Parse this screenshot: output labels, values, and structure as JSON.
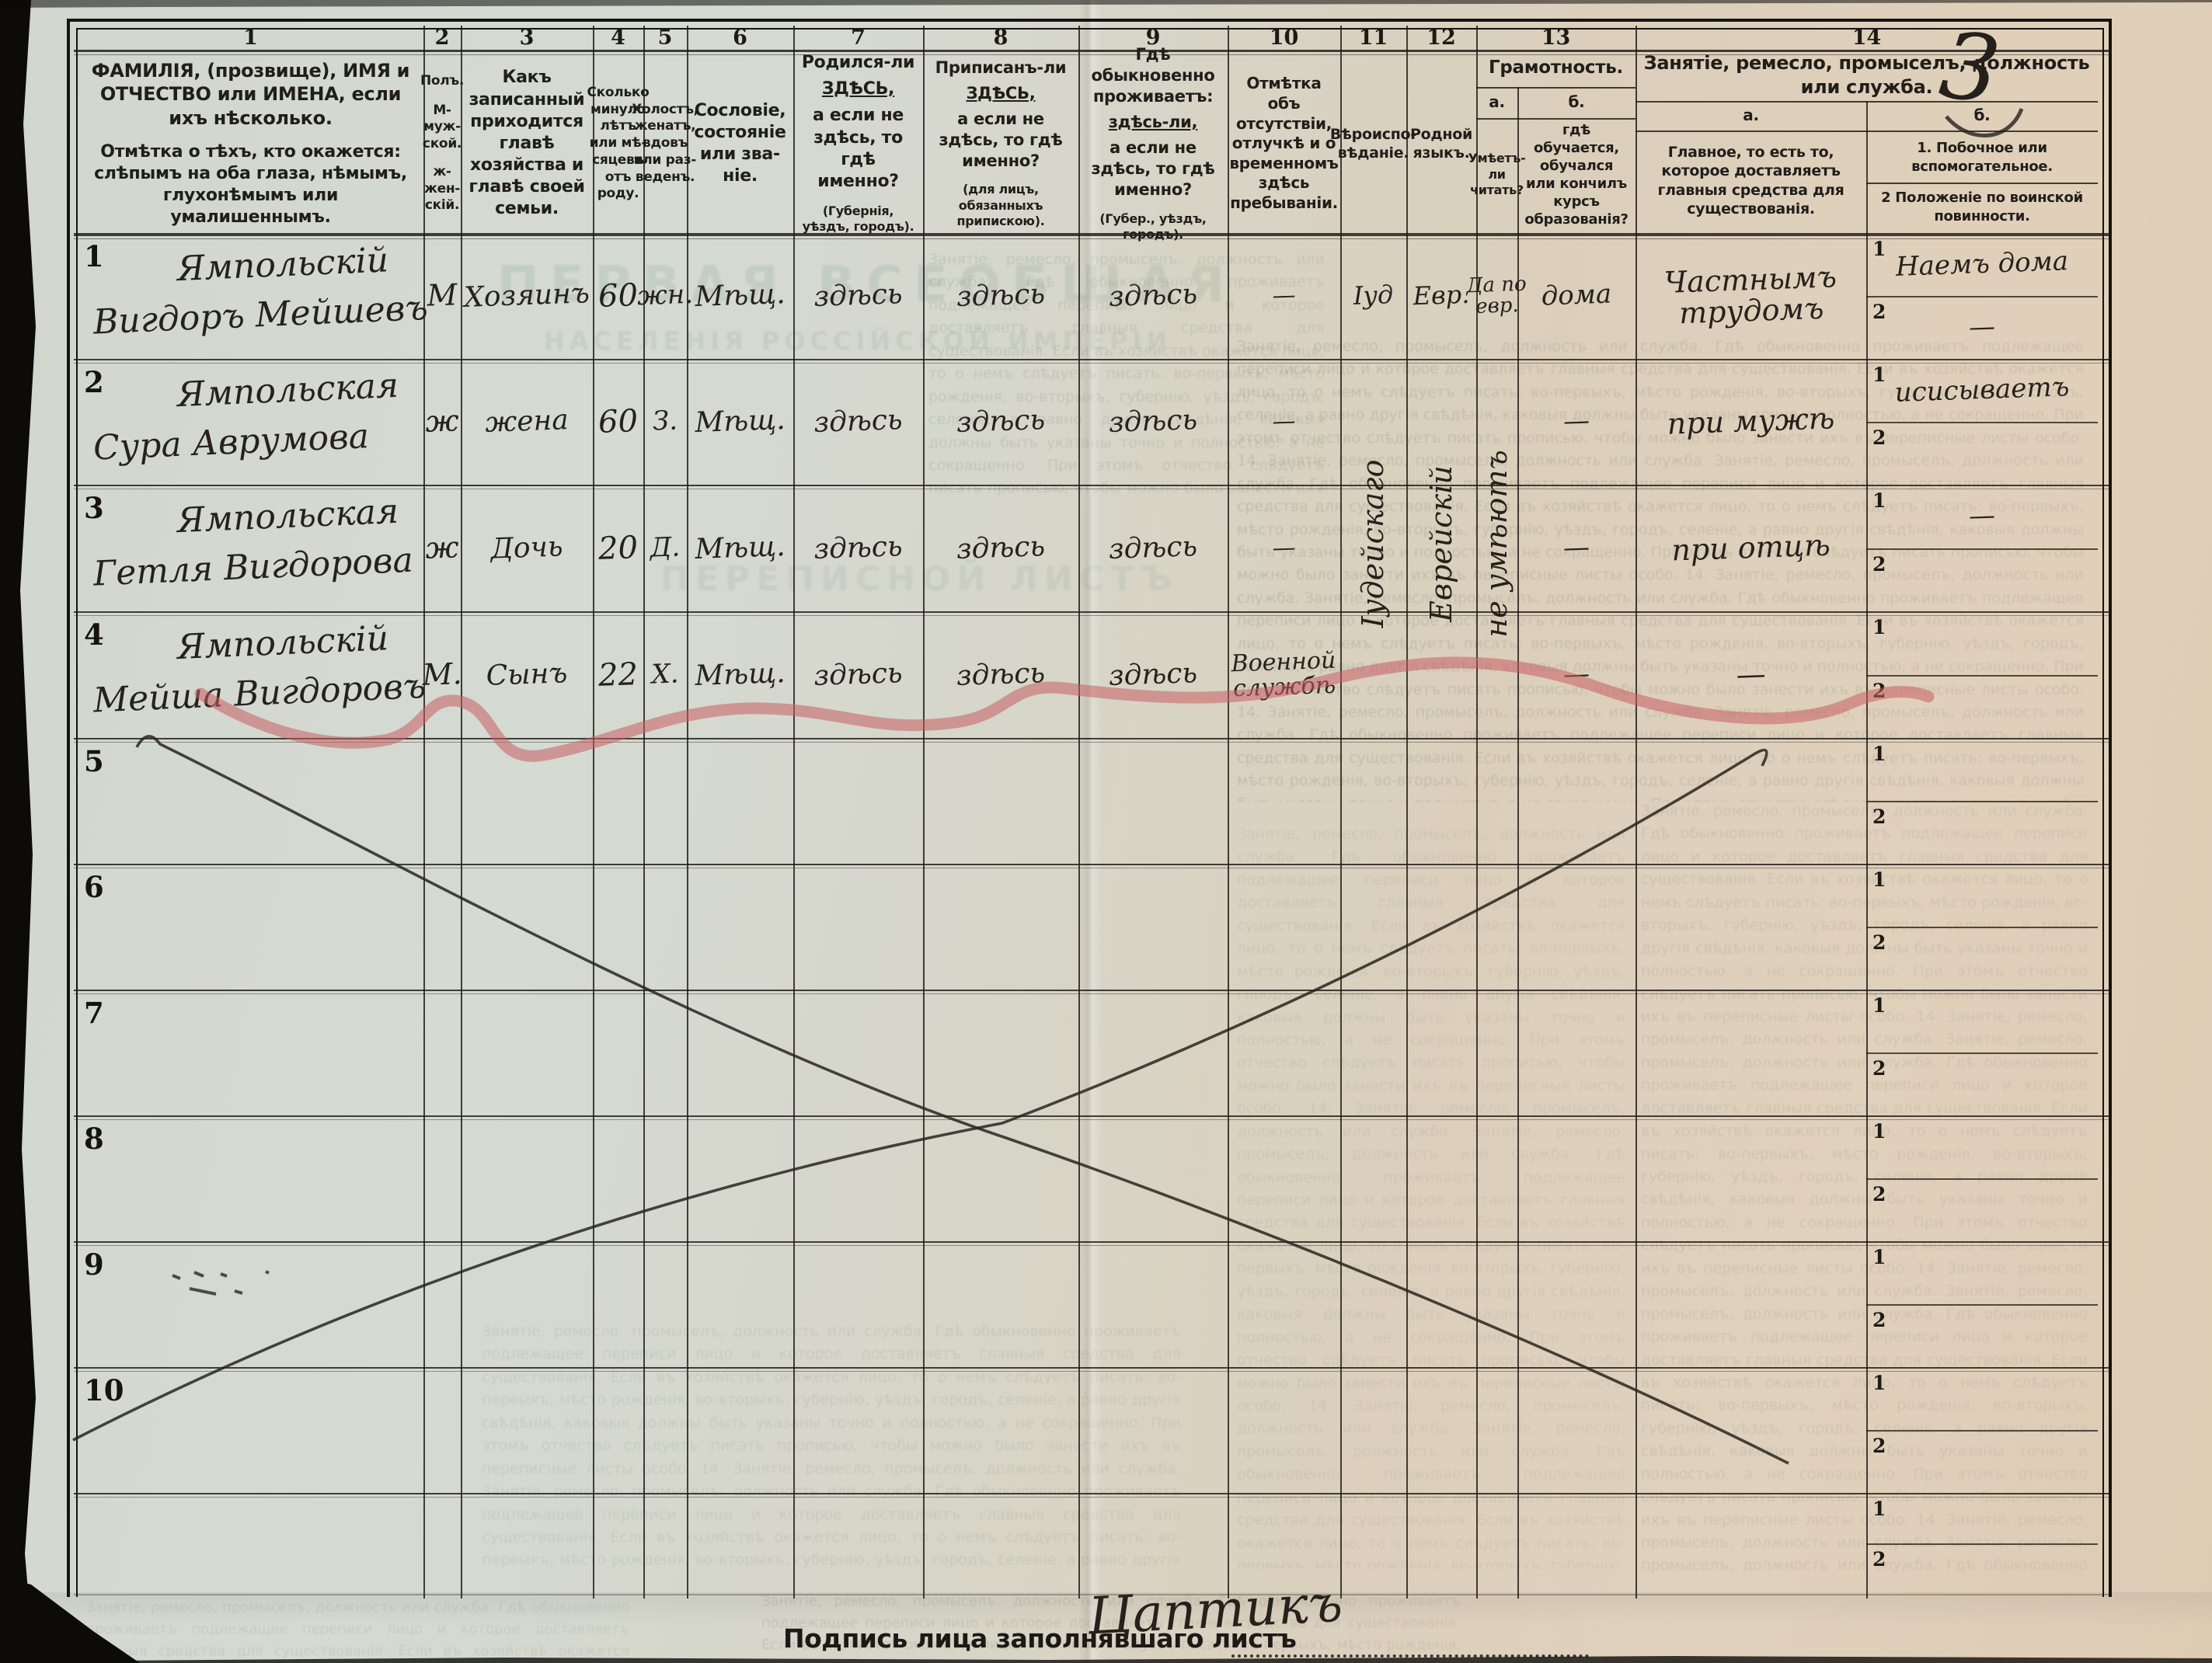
{
  "page": {
    "number": "3",
    "signature_label": "Подпись лица заполнявшаго листъ",
    "signature": "Цаптикъ"
  },
  "colors": {
    "red_pencil": "#c75f63",
    "ink": "#2a2723",
    "paper_left": "#d5dad2",
    "paper_right": "#e0d4c2"
  },
  "subrow": {
    "one": "1",
    "two": "2"
  },
  "header": {
    "cols": [
      {
        "n": "1",
        "text": "ФАМИЛІЯ, (прозвище), ИМЯ и ОТЧЕСТВО или ИМЕНА, если ихъ нѣсколько.",
        "text2": "Отмѣтка о тѣхъ, кто окажется: слѣпымъ на оба глаза, нѣмымъ, глухонѣмымъ или умалишеннымъ."
      },
      {
        "n": "2",
        "text": "Полъ.",
        "text2": "М-муж-ской.",
        "text3": "ж-жен-скій."
      },
      {
        "n": "3",
        "text": "Какъ записанный при­ходится главѣ хозяй­ства и главѣ своей семьи."
      },
      {
        "n": "4",
        "text": "Сколько минуло лѣтъ или мѣ­сяцевъ отъ роду."
      },
      {
        "n": "5",
        "text": "Холостъ, женатъ, вдовъ или раз­веденъ."
      },
      {
        "n": "6",
        "text": "Сословіе, со­стояніе или зва­ніе."
      },
      {
        "n": "7",
        "pre": "Родился-ли",
        "here": "ЗДѢСЬ,",
        "post": "а если не здѣсь, то гдѣ именно?",
        "note": "(Губернія, уѣздъ, городъ)."
      },
      {
        "n": "8",
        "pre": "Приписанъ-ли",
        "here": "ЗДѢСЬ,",
        "post": "а если не здѣсь, то гдѣ именно?",
        "note": "(для лицъ, обязанныхъ припискою)."
      },
      {
        "n": "9",
        "pre": "Гдѣ обыкновенно проживаетъ:",
        "here": "здѣсь-ли,",
        "post": "а если не здѣсь, то гдѣ именно?",
        "note": "(Губер., уѣздъ, городъ)."
      },
      {
        "n": "10",
        "text": "Отмѣтка объ отсутствіи, отлучкѣ и о временномъ здѣсь пребыва­ніи."
      },
      {
        "n": "11",
        "text": "Вѣроиспо­вѣданіе."
      },
      {
        "n": "12",
        "text": "Родной языкъ."
      },
      {
        "n": "13",
        "title": "Грамотность.",
        "a_label": "а.",
        "b_label": "б.",
        "a": "Умѣетъ-ли читать?",
        "b": "гдѣ обучается, обучался или кончилъ курсъ образованія?"
      },
      {
        "n": "14",
        "title": "Занятіе, ремесло, промыселъ, должность или служба.",
        "a_label": "а.",
        "b_label": "б.",
        "a": "Главное, то есть то, которое доставляетъ главныя средства для существованія.",
        "b1": "1. Побочное или вспомогательноe.",
        "b2": "2 Положеніе по воинской повинности."
      }
    ]
  },
  "rows": [
    {
      "n": "1",
      "name1": "Ямпольскій",
      "name2": "Вигдоръ Мейшевъ",
      "sex": "М",
      "relation": "Хозяинъ",
      "age": "60",
      "marital": "жн.",
      "estate": "Мѣщ.",
      "born": "здѣсь",
      "registered": "здѣсь",
      "resides": "здѣсь",
      "absence": "—",
      "religion": "Іуд",
      "language": "Евр.",
      "lit_a": "Да по евр.",
      "lit_b": "дома",
      "occ_a": "Частнымъ трудомъ",
      "occ_b1": "Наемъ дома",
      "occ_b2": "—"
    },
    {
      "n": "2",
      "name1": "Ямпольская",
      "name2": "Сура Аврумова",
      "sex": "ж",
      "relation": "жена",
      "age": "60",
      "marital": "З.",
      "estate": "Мѣщ.",
      "born": "здѣсь",
      "registered": "здѣсь",
      "resides": "здѣсь",
      "absence": "—",
      "lit_b": "—",
      "occ_a": "при мужѣ",
      "occ_b1": "исисываетъ"
    },
    {
      "n": "3",
      "name1": "Ямпольская",
      "name2": "Гетля Вигдорова",
      "sex": "ж",
      "relation": "Дочь",
      "age": "20",
      "marital": "Д.",
      "estate": "Мѣщ.",
      "born": "здѣсь",
      "registered": "здѣсь",
      "resides": "здѣсь",
      "absence": "—",
      "lit_b": "—",
      "occ_a": "при отцѣ",
      "occ_b1": "—"
    },
    {
      "n": "4",
      "name1": "Ямпольскій",
      "name2": "Мейша Вигдоровъ",
      "sex": "М.",
      "relation": "Сынъ",
      "age": "22",
      "marital": "Х.",
      "estate": "Мѣщ.",
      "born": "здѣсь",
      "registered": "здѣсь",
      "resides": "здѣсь",
      "absence": "Военной службѣ",
      "lit_b": "—",
      "occ_a": "—"
    },
    {
      "n": "5"
    },
    {
      "n": "6"
    },
    {
      "n": "7"
    },
    {
      "n": "8"
    },
    {
      "n": "9"
    },
    {
      "n": "10"
    },
    {
      "n": ""
    }
  ],
  "vertical_entries": {
    "religion": "Іудейскаго",
    "language": "Еврейскій",
    "literacy": "не умѣютъ"
  },
  "ghost": {
    "heading1": "ПЕРВАЯ ВСЕОБЩАЯ",
    "heading2": "НАСЕЛЕНІЯ РОССІЙСКОЙ ИМПЕРІИ",
    "heading3": "ПЕРЕПИСНОЙ ЛИСТЪ",
    "filler": "Занятіе, ремесло, промыселъ, должность или служба. Гдѣ обыкновенно проживаетъ подлежащее переписи лицо и которое доставляетъ главныя средства для существованія. Если въ хозяйствѣ окажется лицо, то о немъ слѣдуетъ писать: во-первыхъ, мѣсто рожденія, во-вторыхъ, губернію, уѣздъ, городъ, селеніе, а равно другія свѣдѣнія, каковыя должны быть указаны точно и полностью, а не сокращенно. При этомъ отчество слѣдуетъ писать прописью, чтобы можно было занести ихъ въ переписные листы особо. 14. Занятіе, ремесло, промыселъ, должность или служба. "
  }
}
